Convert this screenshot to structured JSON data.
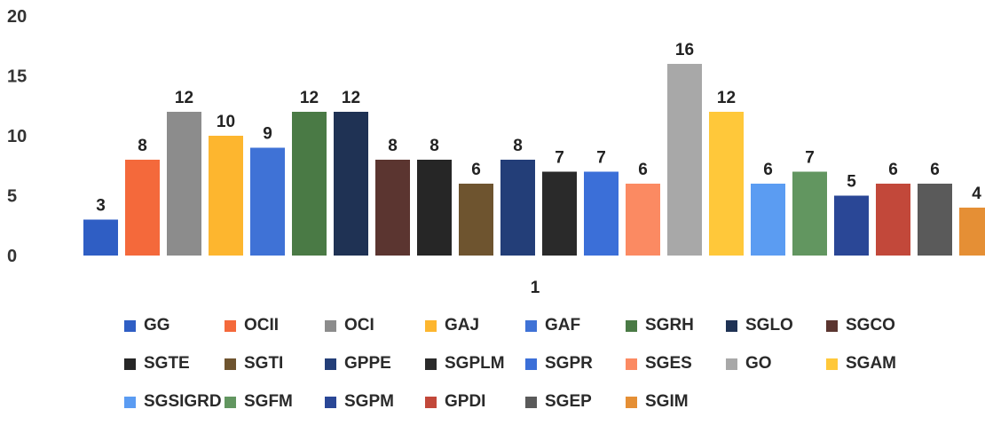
{
  "chart_data": {
    "type": "bar",
    "categories": [
      "1"
    ],
    "y_ticks": [
      "0",
      "5",
      "10",
      "15",
      "20"
    ],
    "ylim": [
      0,
      20
    ],
    "grid": false,
    "legend_position": "bottom",
    "series": [
      {
        "name": "GG",
        "value": 3,
        "label": "3",
        "color": "#2f5ec4"
      },
      {
        "name": "OCII",
        "value": 8,
        "label": "8",
        "color": "#f4693b"
      },
      {
        "name": "OCI",
        "value": 12,
        "label": "12",
        "color": "#8c8c8c"
      },
      {
        "name": "GAJ",
        "value": 10,
        "label": "10",
        "color": "#fdb62f"
      },
      {
        "name": "GAF",
        "value": 9,
        "label": "9",
        "color": "#3f72d6"
      },
      {
        "name": "SGRH",
        "value": 12,
        "label": "12",
        "color": "#4a7a45"
      },
      {
        "name": "SGLO",
        "value": 12,
        "label": "12",
        "color": "#1f3254"
      },
      {
        "name": "SGCO",
        "value": 8,
        "label": "8",
        "color": "#5b3530"
      },
      {
        "name": "SGTE",
        "value": 8,
        "label": "8",
        "color": "#262626"
      },
      {
        "name": "SGTI",
        "value": 6,
        "label": "6",
        "color": "#6e542f"
      },
      {
        "name": "GPPE",
        "value": 8,
        "label": "8",
        "color": "#233e78"
      },
      {
        "name": "SGPLM",
        "value": 7,
        "label": "7",
        "color": "#2a2a2a"
      },
      {
        "name": "SGPR",
        "value": 7,
        "label": "7",
        "color": "#3b6fd8"
      },
      {
        "name": "SGES",
        "value": 6,
        "label": "6",
        "color": "#fb8a62"
      },
      {
        "name": "GO",
        "value": 16,
        "label": "16",
        "color": "#a8a8a8"
      },
      {
        "name": "SGAM",
        "value": 12,
        "label": "12",
        "color": "#ffc83a"
      },
      {
        "name": "SGSIGRD",
        "value": 6,
        "label": "6",
        "color": "#5b9cf2"
      },
      {
        "name": "SGFM",
        "value": 7,
        "label": "7",
        "color": "#629660"
      },
      {
        "name": "SGPM",
        "value": 5,
        "label": "5",
        "color": "#2a4796"
      },
      {
        "name": "GPDI",
        "value": 6,
        "label": "6",
        "color": "#c2483a"
      },
      {
        "name": "SGEP",
        "value": 6,
        "label": "6",
        "color": "#5a5a5a"
      },
      {
        "name": "SGIM",
        "value": 4,
        "label": "4",
        "color": "#e58f35"
      }
    ]
  }
}
